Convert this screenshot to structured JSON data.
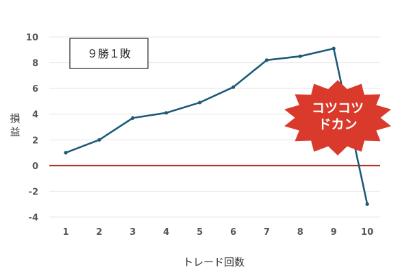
{
  "chart_data": {
    "type": "line",
    "x": [
      1,
      2,
      3,
      4,
      5,
      6,
      7,
      8,
      9,
      10
    ],
    "series": [
      {
        "values": [
          1.0,
          2.0,
          3.7,
          4.1,
          4.9,
          6.1,
          8.2,
          8.5,
          9.1,
          -3.0
        ],
        "color": "#1c5a78"
      }
    ],
    "xlabel": "トレード回数",
    "ylabel": "損益",
    "ylim": [
      -4,
      10
    ],
    "yticks": [
      -4,
      -2,
      0,
      2,
      4,
      6,
      8,
      10
    ],
    "ytick_labels": [
      "-4",
      "-2",
      "0",
      "2",
      "4",
      "6",
      "8",
      "10"
    ],
    "xtick_labels": [
      "1",
      "2",
      "3",
      "4",
      "5",
      "6",
      "7",
      "8",
      "9",
      "10"
    ],
    "reference_line": {
      "y": 0,
      "color": "#b03028"
    },
    "grid": true,
    "annotations": {
      "record_box": "９勝１敗",
      "burst_line1": "コツコツ",
      "burst_line2": "ドカン",
      "burst_color": "#d93a2b"
    }
  }
}
